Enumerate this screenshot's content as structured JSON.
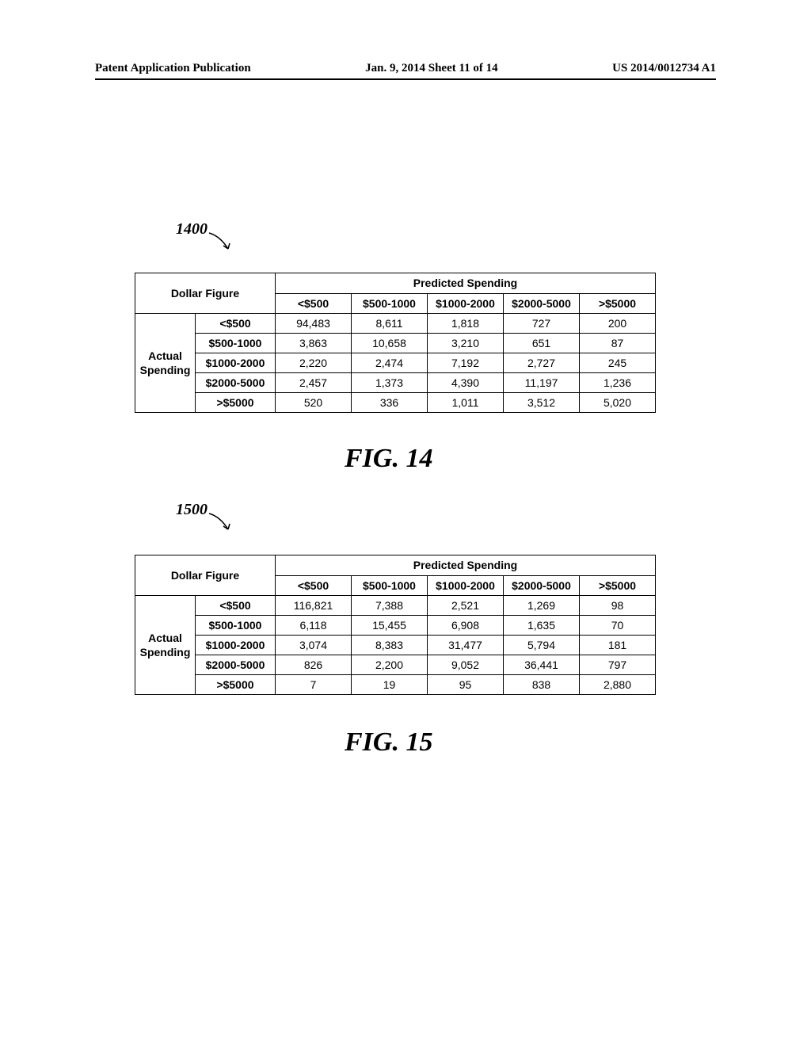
{
  "header": {
    "left": "Patent Application Publication",
    "center": "Jan. 9, 2014  Sheet 11 of 14",
    "right": "US 2014/0012734 A1"
  },
  "fig14": {
    "ref": "1400",
    "corner_label": "Dollar Figure",
    "predicted_header": "Predicted Spending",
    "row_group_label": "Actual Spending",
    "col_headers": [
      "<$500",
      "$500-1000",
      "$1000-2000",
      "$2000-5000",
      ">$5000"
    ],
    "row_headers": [
      "<$500",
      "$500-1000",
      "$1000-2000",
      "$2000-5000",
      ">$5000"
    ],
    "rows": [
      [
        "94,483",
        "8,611",
        "1,818",
        "727",
        "200"
      ],
      [
        "3,863",
        "10,658",
        "3,210",
        "651",
        "87"
      ],
      [
        "2,220",
        "2,474",
        "7,192",
        "2,727",
        "245"
      ],
      [
        "2,457",
        "1,373",
        "4,390",
        "11,197",
        "1,236"
      ],
      [
        "520",
        "336",
        "1,011",
        "3,512",
        "5,020"
      ]
    ],
    "caption": "FIG. 14"
  },
  "fig15": {
    "ref": "1500",
    "corner_label": "Dollar Figure",
    "predicted_header": "Predicted Spending",
    "row_group_label": "Actual Spending",
    "col_headers": [
      "<$500",
      "$500-1000",
      "$1000-2000",
      "$2000-5000",
      ">$5000"
    ],
    "row_headers": [
      "<$500",
      "$500-1000",
      "$1000-2000",
      "$2000-5000",
      ">$5000"
    ],
    "rows": [
      [
        "116,821",
        "7,388",
        "2,521",
        "1,269",
        "98"
      ],
      [
        "6,118",
        "15,455",
        "6,908",
        "1,635",
        "70"
      ],
      [
        "3,074",
        "8,383",
        "31,477",
        "5,794",
        "181"
      ],
      [
        "826",
        "2,200",
        "9,052",
        "36,441",
        "797"
      ],
      [
        "7",
        "19",
        "95",
        "838",
        "2,880"
      ]
    ],
    "caption": "FIG. 15"
  }
}
